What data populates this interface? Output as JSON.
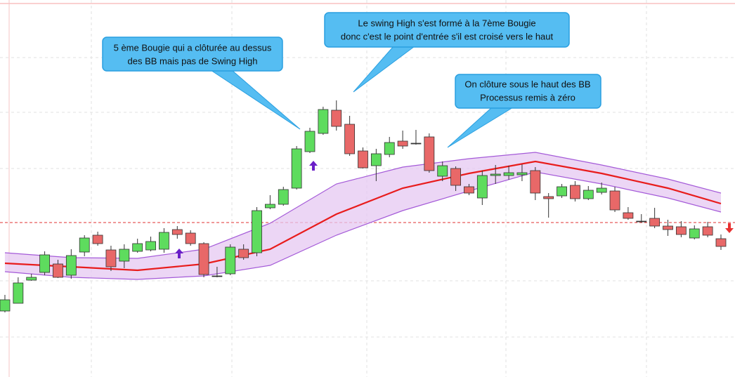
{
  "chart_data": {
    "type": "candlestick",
    "xlim": [
      -0.37,
      55.06
    ],
    "ylim": [
      0,
      537
    ],
    "grid": true,
    "up_color": "#5edc5e",
    "down_color": "#e86868",
    "open": [
      94,
      105,
      138,
      149,
      161,
      145,
      178,
      202,
      181,
      165,
      179,
      181,
      182,
      210,
      205,
      190,
      144,
      147,
      182,
      177,
      241,
      246,
      269,
      321,
      347,
      380,
      360,
      322,
      301,
      317,
      336,
      333,
      342,
      286,
      297,
      271,
      255,
      287,
      287,
      288,
      294,
      257,
      258,
      273,
      254,
      263,
      265,
      234,
      222,
      226,
      215,
      214,
      198,
      214,
      197
    ],
    "high": [
      117,
      142,
      147,
      179,
      167,
      182,
      202,
      207,
      187,
      189,
      197,
      200,
      212,
      215,
      209,
      192,
      157,
      189,
      189,
      242,
      259,
      271,
      329,
      355,
      385,
      394,
      372,
      327,
      325,
      342,
      351,
      352,
      347,
      307,
      300,
      275,
      294,
      302,
      301,
      303,
      299,
      262,
      275,
      279,
      272,
      277,
      271,
      242,
      232,
      241,
      224,
      222,
      216,
      221,
      203
    ],
    "low": [
      92,
      105,
      137,
      145,
      141,
      140,
      172,
      187,
      151,
      155,
      177,
      179,
      177,
      197,
      187,
      142,
      142,
      145,
      167,
      172,
      239,
      244,
      267,
      319,
      345,
      351,
      315,
      297,
      279,
      313,
      325,
      331,
      291,
      279,
      265,
      259,
      245,
      275,
      281,
      279,
      252,
      227,
      255,
      250,
      252,
      260,
      235,
      224,
      220,
      212,
      201,
      199,
      196,
      199,
      181
    ],
    "close": [
      110,
      134,
      142,
      174,
      142,
      173,
      198,
      190,
      157,
      182,
      190,
      193,
      206,
      203,
      190,
      146,
      144,
      185,
      170,
      237,
      246,
      267,
      325,
      350,
      381,
      357,
      318,
      298,
      318,
      334,
      329,
      333,
      294,
      301,
      273,
      262,
      287,
      289,
      291,
      291,
      262,
      254,
      271,
      254,
      266,
      269,
      238,
      226,
      222,
      215,
      210,
      203,
      211,
      202,
      186
    ],
    "bands": {
      "x": [
        0,
        5,
        10,
        15,
        20,
        25,
        30,
        35,
        40,
        45,
        50,
        54
      ],
      "series": [
        {
          "color": "#e81c1c",
          "values": [
            162,
            157,
            152,
            161,
            182,
            232,
            269,
            290,
            307,
            290,
            269,
            247
          ]
        },
        {
          "color": "#a45ad8",
          "values": [
            177,
            170,
            169,
            182,
            219,
            275,
            299,
            311,
            320,
            302,
            282,
            262
          ]
        },
        {
          "color": "#a45ad8",
          "values": [
            150,
            142,
            139,
            144,
            159,
            202,
            237,
            265,
            292,
            275,
            255,
            235
          ]
        }
      ]
    },
    "reference_line": 220,
    "annotations": [
      {
        "lines": [
          "5 ème Bougie qui a clôturée au dessus",
          "des BB mais pas de Swing High"
        ]
      },
      {
        "lines": [
          "Le swing High s'est formé à la 7ème Bougie",
          "donc c'est le point d'entrée s'il est croisé vers le haut"
        ]
      },
      {
        "lines": [
          "On clôture sous le haut des BB",
          "Processus remis à zéro"
        ]
      }
    ]
  }
}
